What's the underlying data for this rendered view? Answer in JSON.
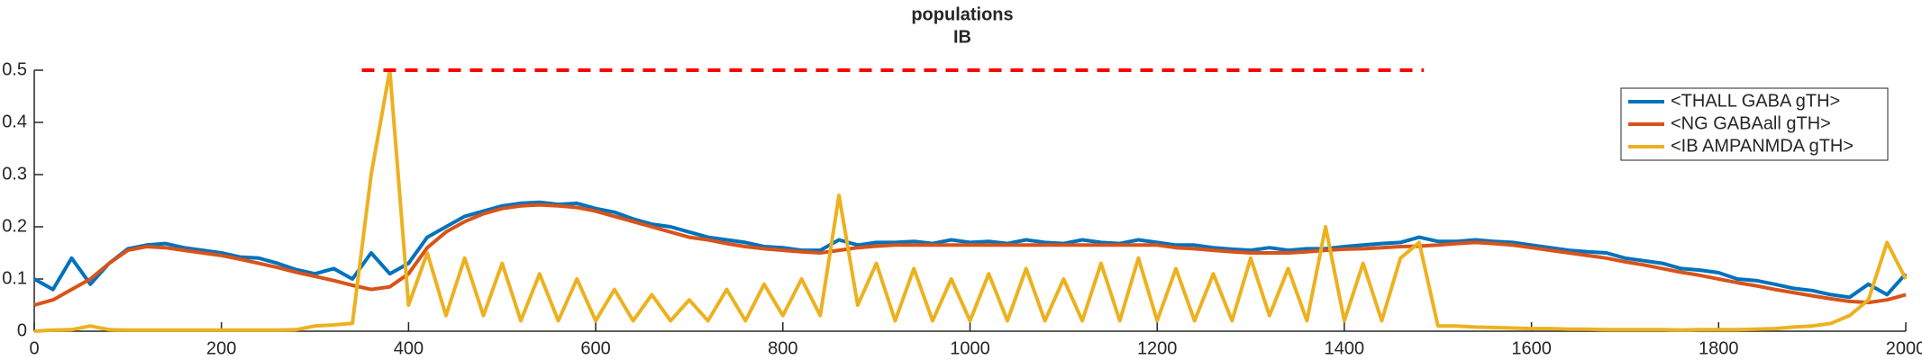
{
  "chart_data": {
    "type": "line",
    "title": "populations",
    "subtitle": "IB",
    "x": [
      0,
      20,
      40,
      60,
      80,
      100,
      120,
      140,
      160,
      180,
      200,
      220,
      240,
      260,
      280,
      300,
      320,
      340,
      360,
      380,
      400,
      420,
      440,
      460,
      480,
      500,
      520,
      540,
      560,
      580,
      600,
      620,
      640,
      660,
      680,
      700,
      720,
      740,
      760,
      780,
      800,
      820,
      840,
      860,
      880,
      900,
      920,
      940,
      960,
      980,
      1000,
      1020,
      1040,
      1060,
      1080,
      1100,
      1120,
      1140,
      1160,
      1180,
      1200,
      1220,
      1240,
      1260,
      1280,
      1300,
      1320,
      1340,
      1360,
      1380,
      1400,
      1420,
      1440,
      1460,
      1480,
      1500,
      1520,
      1540,
      1560,
      1580,
      1600,
      1620,
      1640,
      1660,
      1680,
      1700,
      1720,
      1740,
      1760,
      1780,
      1800,
      1820,
      1840,
      1860,
      1880,
      1900,
      1920,
      1940,
      1960,
      1980,
      2000
    ],
    "series": [
      {
        "name": "<THALL GABA gTH>",
        "color": "#0072BD",
        "values": [
          0.1,
          0.08,
          0.14,
          0.09,
          0.13,
          0.158,
          0.165,
          0.168,
          0.16,
          0.155,
          0.15,
          0.142,
          0.14,
          0.13,
          0.118,
          0.11,
          0.12,
          0.1,
          0.15,
          0.11,
          0.13,
          0.18,
          0.2,
          0.22,
          0.23,
          0.24,
          0.245,
          0.247,
          0.243,
          0.245,
          0.235,
          0.228,
          0.215,
          0.205,
          0.2,
          0.19,
          0.18,
          0.175,
          0.17,
          0.162,
          0.16,
          0.155,
          0.155,
          0.175,
          0.165,
          0.17,
          0.17,
          0.172,
          0.168,
          0.175,
          0.17,
          0.172,
          0.168,
          0.175,
          0.17,
          0.168,
          0.175,
          0.17,
          0.168,
          0.175,
          0.17,
          0.165,
          0.165,
          0.16,
          0.157,
          0.155,
          0.16,
          0.155,
          0.158,
          0.158,
          0.162,
          0.165,
          0.168,
          0.17,
          0.18,
          0.172,
          0.172,
          0.175,
          0.172,
          0.17,
          0.165,
          0.16,
          0.155,
          0.152,
          0.15,
          0.14,
          0.135,
          0.13,
          0.12,
          0.117,
          0.112,
          0.1,
          0.097,
          0.09,
          0.082,
          0.078,
          0.07,
          0.065,
          0.09,
          0.07,
          0.11
        ]
      },
      {
        "name": "<NG GABAall gTH>",
        "color": "#D95319",
        "values": [
          0.05,
          0.06,
          0.08,
          0.1,
          0.13,
          0.155,
          0.162,
          0.16,
          0.155,
          0.15,
          0.145,
          0.138,
          0.13,
          0.122,
          0.113,
          0.105,
          0.097,
          0.088,
          0.08,
          0.085,
          0.11,
          0.16,
          0.19,
          0.21,
          0.225,
          0.235,
          0.24,
          0.242,
          0.24,
          0.237,
          0.23,
          0.22,
          0.21,
          0.2,
          0.19,
          0.18,
          0.175,
          0.168,
          0.162,
          0.158,
          0.155,
          0.152,
          0.15,
          0.155,
          0.16,
          0.163,
          0.165,
          0.165,
          0.165,
          0.165,
          0.165,
          0.165,
          0.165,
          0.165,
          0.165,
          0.165,
          0.165,
          0.165,
          0.165,
          0.165,
          0.165,
          0.16,
          0.158,
          0.155,
          0.152,
          0.15,
          0.15,
          0.15,
          0.152,
          0.155,
          0.157,
          0.158,
          0.16,
          0.162,
          0.163,
          0.165,
          0.168,
          0.17,
          0.168,
          0.165,
          0.16,
          0.155,
          0.15,
          0.145,
          0.14,
          0.133,
          0.127,
          0.12,
          0.113,
          0.107,
          0.1,
          0.093,
          0.087,
          0.08,
          0.074,
          0.068,
          0.062,
          0.057,
          0.055,
          0.06,
          0.07
        ]
      },
      {
        "name": "<IB AMPANMDA gTH>",
        "color": "#EDB120",
        "values": [
          0,
          0.002,
          0.003,
          0.01,
          0.003,
          0.002,
          0.002,
          0.002,
          0.002,
          0.002,
          0.002,
          0.002,
          0.002,
          0.002,
          0.003,
          0.01,
          0.012,
          0.015,
          0.3,
          0.5,
          0.05,
          0.15,
          0.03,
          0.14,
          0.03,
          0.13,
          0.02,
          0.11,
          0.02,
          0.1,
          0.02,
          0.08,
          0.02,
          0.07,
          0.02,
          0.06,
          0.02,
          0.08,
          0.02,
          0.09,
          0.03,
          0.1,
          0.03,
          0.26,
          0.05,
          0.13,
          0.02,
          0.12,
          0.02,
          0.1,
          0.02,
          0.11,
          0.02,
          0.12,
          0.02,
          0.1,
          0.02,
          0.13,
          0.02,
          0.14,
          0.02,
          0.12,
          0.02,
          0.11,
          0.02,
          0.14,
          0.03,
          0.12,
          0.02,
          0.2,
          0.02,
          0.13,
          0.02,
          0.14,
          0.17,
          0.01,
          0.01,
          0.008,
          0.007,
          0.006,
          0.005,
          0.005,
          0.004,
          0.004,
          0.003,
          0.003,
          0.003,
          0.003,
          0.002,
          0.003,
          0.003,
          0.003,
          0.004,
          0.005,
          0.008,
          0.01,
          0.015,
          0.03,
          0.06,
          0.17,
          0.1
        ]
      }
    ],
    "reference_line": {
      "y": 0.5,
      "x": [
        350,
        1485
      ],
      "color": "#FF0000"
    },
    "xlim": [
      0,
      2000
    ],
    "xticks": [
      0,
      200,
      400,
      600,
      800,
      1000,
      1200,
      1400,
      1600,
      1800,
      2000
    ],
    "ylim": [
      0,
      0.5
    ],
    "yticks": [
      0,
      0.1,
      0.2,
      0.3,
      0.4,
      0.5
    ],
    "legend": "upper right",
    "grid": false
  }
}
